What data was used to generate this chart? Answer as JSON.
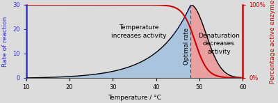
{
  "xlabel": "Temperature / °C",
  "ylabel_left": "Rate of reaction",
  "ylabel_right": "Percentage active enzyme",
  "xlim": [
    10,
    60
  ],
  "ylim_left": [
    0,
    30
  ],
  "ylim_right": [
    0,
    100
  ],
  "xticks": [
    10,
    20,
    30,
    40,
    50,
    60
  ],
  "yticks_left": [
    0,
    10,
    20,
    30
  ],
  "optimal_temp": 48,
  "bg_color": "#dcdcdc",
  "blue_fill_color": "#aac4dd",
  "red_fill_color": "#e8a0a0",
  "line_color_black": "#000000",
  "line_color_red": "#cc0000",
  "line_color_blue": "#3333cc",
  "dashed_line_color": "#444444",
  "annotation1": "Temperature\nincreases activity",
  "annotation2": "Denaturation\ndecreases\nactivity",
  "annotation3": "Optimal rate",
  "font_size_annot": 6.5,
  "font_size_axis": 6.5,
  "font_size_tick": 6
}
